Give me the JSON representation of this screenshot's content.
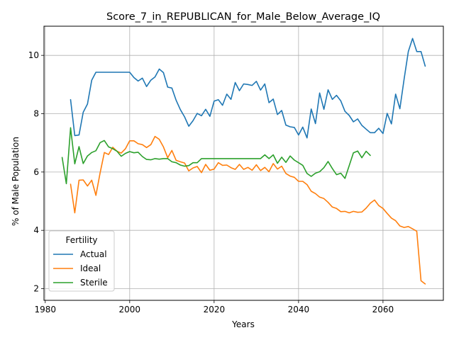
{
  "chart_data": {
    "type": "line",
    "title": "Score_7_in_REPUBLICAN_for_Male_Below_Average_IQ",
    "xlabel": "Years",
    "ylabel": "% of Male Population",
    "xlim": [
      1979.7,
      2074.3
    ],
    "ylim": [
      1.6,
      11.0
    ],
    "xticks": [
      1980,
      2000,
      2020,
      2040,
      2060
    ],
    "yticks": [
      2,
      4,
      6,
      8,
      10
    ],
    "grid": true,
    "legend": {
      "title": "Fertility",
      "location": "lower-left"
    },
    "series": [
      {
        "name": "Actual",
        "color": "#1f77b4",
        "x": [
          1986,
          1987,
          1988,
          1989,
          1990,
          1991,
          1992,
          1993,
          1994,
          1995,
          1996,
          1997,
          1998,
          1999,
          2000,
          2001,
          2002,
          2003,
          2004,
          2005,
          2006,
          2007,
          2008,
          2009,
          2010,
          2011,
          2012,
          2013,
          2014,
          2015,
          2016,
          2017,
          2018,
          2019,
          2020,
          2021,
          2022,
          2023,
          2024,
          2025,
          2026,
          2027,
          2028,
          2029,
          2030,
          2031,
          2032,
          2033,
          2034,
          2035,
          2036,
          2037,
          2038,
          2039,
          2040,
          2041,
          2042,
          2043,
          2044,
          2045,
          2046,
          2047,
          2048,
          2049,
          2050,
          2051,
          2052,
          2053,
          2054,
          2055,
          2056,
          2057,
          2058,
          2059,
          2060,
          2061,
          2062,
          2063,
          2064,
          2065,
          2066,
          2067,
          2068,
          2069,
          2070
        ],
        "values": [
          8.48,
          7.25,
          7.27,
          8.05,
          8.33,
          9.15,
          9.42,
          9.42,
          9.42,
          9.42,
          9.42,
          9.42,
          9.42,
          9.42,
          9.42,
          9.24,
          9.12,
          9.22,
          8.93,
          9.15,
          9.26,
          9.53,
          9.41,
          8.91,
          8.88,
          8.46,
          8.14,
          7.89,
          7.57,
          7.76,
          8.01,
          7.93,
          8.15,
          7.91,
          8.43,
          8.48,
          8.29,
          8.67,
          8.49,
          9.07,
          8.79,
          9.02,
          9.0,
          8.97,
          9.11,
          8.81,
          9.02,
          8.38,
          8.5,
          7.97,
          8.11,
          7.61,
          7.55,
          7.53,
          7.27,
          7.54,
          7.17,
          8.16,
          7.66,
          8.71,
          8.15,
          8.82,
          8.49,
          8.63,
          8.44,
          8.08,
          7.94,
          7.72,
          7.82,
          7.6,
          7.47,
          7.35,
          7.35,
          7.5,
          7.32,
          8.01,
          7.65,
          8.67,
          8.17,
          9.19,
          10.13,
          10.58,
          10.13,
          10.13,
          9.63
        ]
      },
      {
        "name": "Ideal",
        "color": "#ff7f0e",
        "x": [
          1986,
          1987,
          1988,
          1989,
          1990,
          1991,
          1992,
          1993,
          1994,
          1995,
          1996,
          1997,
          1998,
          1999,
          2000,
          2001,
          2002,
          2003,
          2004,
          2005,
          2006,
          2007,
          2008,
          2009,
          2010,
          2011,
          2012,
          2013,
          2014,
          2015,
          2016,
          2017,
          2018,
          2019,
          2020,
          2021,
          2022,
          2023,
          2024,
          2025,
          2026,
          2027,
          2028,
          2029,
          2030,
          2031,
          2032,
          2033,
          2034,
          2035,
          2036,
          2037,
          2038,
          2039,
          2040,
          2041,
          2042,
          2043,
          2044,
          2045,
          2046,
          2047,
          2048,
          2049,
          2050,
          2051,
          2052,
          2053,
          2054,
          2055,
          2056,
          2057,
          2058,
          2059,
          2060,
          2061,
          2062,
          2063,
          2064,
          2065,
          2066,
          2067,
          2068,
          2069,
          2070
        ],
        "values": [
          5.58,
          4.6,
          5.72,
          5.73,
          5.52,
          5.72,
          5.2,
          5.98,
          6.67,
          6.6,
          6.85,
          6.71,
          6.65,
          6.8,
          7.07,
          7.07,
          6.97,
          6.94,
          6.84,
          6.94,
          7.22,
          7.12,
          6.86,
          6.49,
          6.74,
          6.4,
          6.35,
          6.31,
          6.04,
          6.14,
          6.19,
          5.98,
          6.26,
          6.06,
          6.1,
          6.32,
          6.23,
          6.24,
          6.15,
          6.09,
          6.26,
          6.09,
          6.16,
          6.06,
          6.25,
          6.05,
          6.16,
          6.01,
          6.29,
          6.1,
          6.2,
          5.95,
          5.86,
          5.82,
          5.68,
          5.68,
          5.57,
          5.34,
          5.26,
          5.14,
          5.09,
          4.96,
          4.8,
          4.75,
          4.64,
          4.65,
          4.6,
          4.65,
          4.62,
          4.63,
          4.76,
          4.93,
          5.04,
          4.85,
          4.75,
          4.58,
          4.42,
          4.33,
          4.15,
          4.1,
          4.13,
          4.05,
          3.97,
          2.27,
          2.16
        ]
      },
      {
        "name": "Sterile",
        "color": "#2ca02c",
        "x": [
          1984,
          1985,
          1986,
          1987,
          1988,
          1989,
          1990,
          1991,
          1992,
          1993,
          1994,
          1995,
          1996,
          1997,
          1998,
          1999,
          2000,
          2001,
          2002,
          2003,
          2004,
          2005,
          2006,
          2007,
          2008,
          2009,
          2010,
          2011,
          2012,
          2013,
          2014,
          2015,
          2016,
          2017,
          2018,
          2019,
          2020,
          2021,
          2022,
          2023,
          2024,
          2025,
          2026,
          2027,
          2028,
          2029,
          2030,
          2031,
          2032,
          2033,
          2034,
          2035,
          2036,
          2037,
          2038,
          2039,
          2040,
          2041,
          2042,
          2043,
          2044,
          2045,
          2046,
          2047,
          2048,
          2049,
          2050,
          2051,
          2052,
          2053,
          2054,
          2055,
          2056,
          2057
        ],
        "values": [
          6.5,
          5.6,
          7.52,
          6.28,
          6.87,
          6.29,
          6.55,
          6.67,
          6.73,
          7.01,
          7.08,
          6.86,
          6.8,
          6.71,
          6.54,
          6.64,
          6.7,
          6.66,
          6.68,
          6.53,
          6.43,
          6.42,
          6.46,
          6.44,
          6.46,
          6.46,
          6.35,
          6.32,
          6.24,
          6.2,
          6.22,
          6.32,
          6.32,
          6.46,
          6.46,
          6.46,
          6.46,
          6.46,
          6.46,
          6.46,
          6.46,
          6.46,
          6.46,
          6.46,
          6.46,
          6.46,
          6.46,
          6.46,
          6.59,
          6.46,
          6.59,
          6.3,
          6.51,
          6.33,
          6.55,
          6.41,
          6.32,
          6.23,
          5.95,
          5.85,
          5.96,
          6.01,
          6.15,
          6.36,
          6.12,
          5.91,
          5.96,
          5.78,
          6.22,
          6.66,
          6.72,
          6.49,
          6.71,
          6.57
        ]
      }
    ]
  }
}
